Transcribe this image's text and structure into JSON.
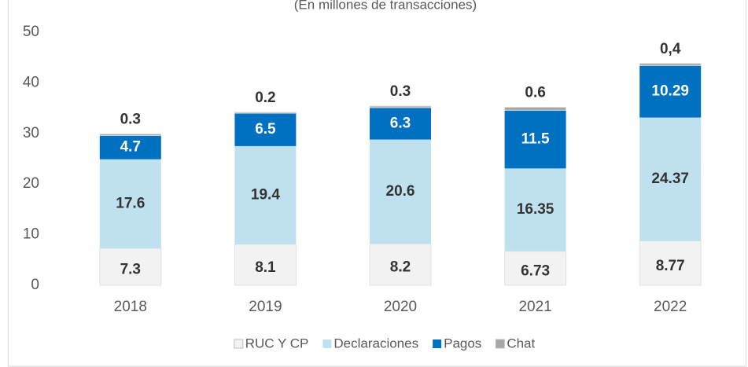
{
  "chart_data": {
    "type": "stacked-bar",
    "subtitle": "(En millones de transacciones)",
    "categories": [
      "2018",
      "2019",
      "2020",
      "2021",
      "2022"
    ],
    "series": [
      {
        "name": "RUC Y CP",
        "color": "#f2f2f2",
        "values": [
          7.3,
          8.1,
          8.2,
          6.73,
          8.77
        ]
      },
      {
        "name": "Declaraciones",
        "color": "#bfe1ef",
        "values": [
          17.6,
          19.4,
          20.6,
          16.35,
          24.37
        ]
      },
      {
        "name": "Pagos",
        "color": "#0070c0",
        "values": [
          4.7,
          6.5,
          6.3,
          11.5,
          10.29
        ]
      },
      {
        "name": "Chat",
        "color": "#a6a6a6",
        "values": [
          0.3,
          0.2,
          0.3,
          0.6,
          0.4
        ],
        "value_labels": [
          "0.3",
          "0.2",
          "0.3",
          "0.6",
          "0,4"
        ]
      }
    ],
    "ylim": [
      0,
      50
    ],
    "yticks": [
      0,
      10,
      20,
      30,
      40,
      50
    ],
    "grid": false,
    "legend": "bottom"
  }
}
